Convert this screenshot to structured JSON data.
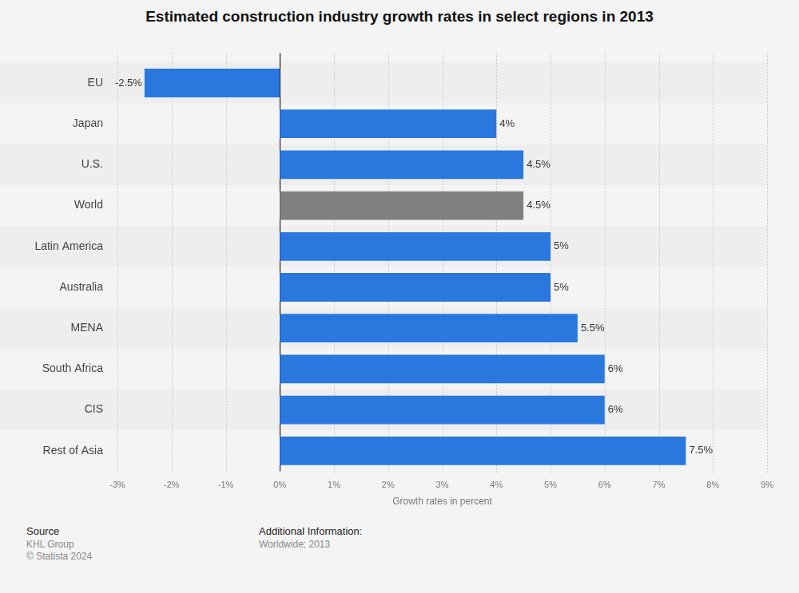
{
  "chart_data": {
    "type": "bar",
    "orientation": "horizontal",
    "title": "Estimated construction industry growth rates in select regions in 2013",
    "categories": [
      "EU",
      "Japan",
      "U.S.",
      "World",
      "Latin America",
      "Australia",
      "MENA",
      "South Africa",
      "CIS",
      "Rest of Asia"
    ],
    "values": [
      -2.5,
      4,
      4.5,
      4.5,
      5,
      5,
      5.5,
      6,
      6,
      7.5
    ],
    "value_labels": [
      "-2.5%",
      "4%",
      "4.5%",
      "4.5%",
      "5%",
      "5%",
      "5.5%",
      "6%",
      "6%",
      "7.5%"
    ],
    "colors": [
      "#2a78de",
      "#2a78de",
      "#2a78de",
      "#808080",
      "#2a78de",
      "#2a78de",
      "#2a78de",
      "#2a78de",
      "#2a78de",
      "#2a78de"
    ],
    "x_label": "Growth rates in percent",
    "xlim": [
      -3,
      9
    ],
    "xticks": [
      {
        "value": -3,
        "label": "-3%"
      },
      {
        "value": -2,
        "label": "-2%"
      },
      {
        "value": -1,
        "label": "-1%"
      },
      {
        "value": 0,
        "label": "0%"
      },
      {
        "value": 1,
        "label": "1%"
      },
      {
        "value": 2,
        "label": "2%"
      },
      {
        "value": 3,
        "label": "3%"
      },
      {
        "value": 4,
        "label": "4%"
      },
      {
        "value": 5,
        "label": "5%"
      },
      {
        "value": 6,
        "label": "6%"
      },
      {
        "value": 7,
        "label": "7%"
      },
      {
        "value": 8,
        "label": "8%"
      },
      {
        "value": 9,
        "label": "9%"
      }
    ],
    "grid": true,
    "data_labels": true
  },
  "footer": {
    "source_heading": "Source",
    "source": "KHL Group",
    "copyright": "© Statista 2024",
    "info_heading": "Additional Information:",
    "info": "Worldwide; 2013"
  }
}
